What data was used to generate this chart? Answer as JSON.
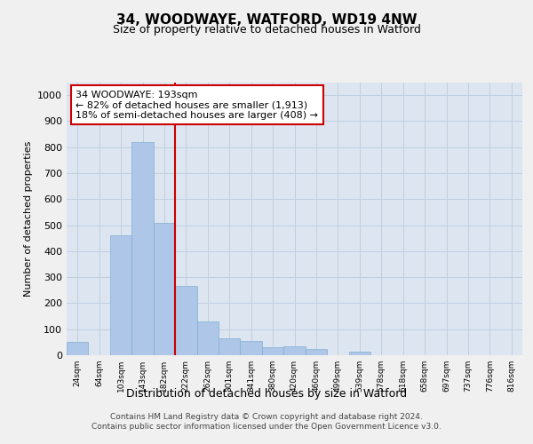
{
  "title": "34, WOODWAYE, WATFORD, WD19 4NW",
  "subtitle": "Size of property relative to detached houses in Watford",
  "xlabel": "Distribution of detached houses by size in Watford",
  "ylabel": "Number of detached properties",
  "bin_labels": [
    "24sqm",
    "64sqm",
    "103sqm",
    "143sqm",
    "182sqm",
    "222sqm",
    "262sqm",
    "301sqm",
    "341sqm",
    "380sqm",
    "420sqm",
    "460sqm",
    "499sqm",
    "539sqm",
    "578sqm",
    "618sqm",
    "658sqm",
    "697sqm",
    "737sqm",
    "776sqm",
    "816sqm"
  ],
  "bar_heights": [
    50,
    0,
    460,
    820,
    510,
    265,
    130,
    65,
    55,
    30,
    35,
    25,
    0,
    15,
    0,
    0,
    0,
    0,
    0,
    0,
    0
  ],
  "bar_color": "#aec6e8",
  "bar_edge_color": "#7fafd4",
  "vline_color": "#cc0000",
  "annotation_text": "34 WOODWAYE: 193sqm\n← 82% of detached houses are smaller (1,913)\n18% of semi-detached houses are larger (408) →",
  "annotation_box_color": "#ffffff",
  "annotation_box_edge": "#cc0000",
  "ylim": [
    0,
    1050
  ],
  "yticks": [
    0,
    100,
    200,
    300,
    400,
    500,
    600,
    700,
    800,
    900,
    1000
  ],
  "grid_color": "#c0cfe0",
  "background_color": "#dde6f0",
  "fig_background": "#f0f0f0",
  "footer_line1": "Contains HM Land Registry data © Crown copyright and database right 2024.",
  "footer_line2": "Contains public sector information licensed under the Open Government Licence v3.0."
}
